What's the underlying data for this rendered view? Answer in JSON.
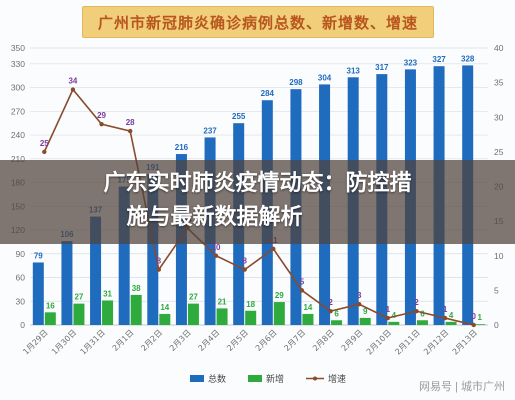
{
  "headline": {
    "line1": "广东实时肺炎疫情动态：防控措",
    "line2": "施与最新数据解析"
  },
  "watermark": "网易号 | 城市广州",
  "colors": {
    "total": "#1f6bbd",
    "new": "#2eab3c",
    "growth": "#8b4a2b",
    "grid": "#d9dde3",
    "axis_text": "#707070"
  },
  "chart_data": {
    "type": "bar",
    "title": "广州市新冠肺炎确诊病例总数、新增数、增速",
    "categories": [
      "1月29日",
      "1月30日",
      "1月31日",
      "2月1日",
      "2月2日",
      "2月3日",
      "2月4日",
      "2月5日",
      "2月6日",
      "2月7日",
      "2月8日",
      "2月9日",
      "2月10日",
      "2月11日",
      "2月12日",
      "2月13日"
    ],
    "series": [
      {
        "name": "总数",
        "type": "bar",
        "axis": "left",
        "values": [
          79,
          106,
          137,
          175,
          191,
          216,
          237,
          255,
          284,
          298,
          304,
          313,
          317,
          323,
          327,
          328
        ]
      },
      {
        "name": "新增",
        "type": "bar",
        "axis": "left",
        "values": [
          16,
          27,
          31,
          38,
          14,
          27,
          21,
          18,
          29,
          14,
          6,
          9,
          4,
          6,
          4,
          1
        ]
      },
      {
        "name": "增速",
        "type": "line",
        "axis": "right",
        "values": [
          25,
          34,
          29,
          28,
          8,
          14,
          10,
          8,
          11,
          5,
          2,
          3,
          1,
          2,
          1,
          0
        ]
      }
    ],
    "left_axis": {
      "ylim": [
        0,
        350
      ],
      "ticks": [
        0,
        30,
        60,
        90,
        120,
        150,
        180,
        210,
        240,
        270,
        300,
        330,
        350
      ]
    },
    "right_axis": {
      "ylim": [
        0,
        40
      ],
      "ticks": [
        0,
        5,
        10,
        15,
        20,
        25,
        30,
        35,
        40
      ]
    },
    "grid": true,
    "legend": "bottom"
  }
}
